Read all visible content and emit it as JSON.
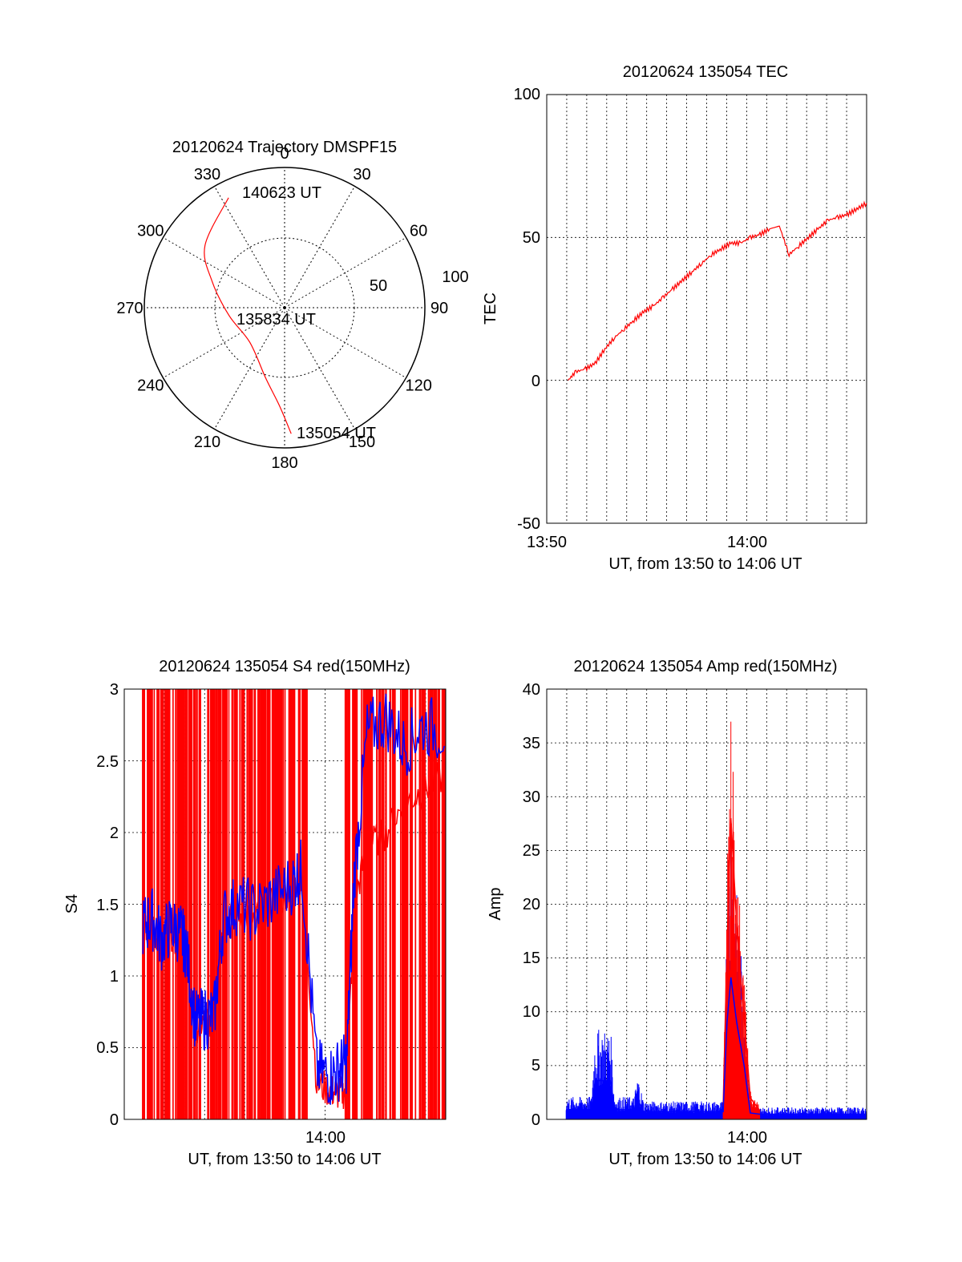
{
  "colors": {
    "red": "#ff0000",
    "blue": "#0000ff",
    "axis": "#000000",
    "grid": "#000000",
    "background": "#ffffff"
  },
  "polar": {
    "title": "20120624 Trajectory DMSPF15",
    "angle_labels": [
      "0",
      "30",
      "60",
      "90",
      "120",
      "150",
      "180",
      "210",
      "240",
      "270",
      "300",
      "330"
    ],
    "radius_labels": [
      "50",
      "100"
    ],
    "annotations": [
      "140623 UT",
      "135834 UT",
      "135054 UT"
    ]
  },
  "tec": {
    "title": "20120624 135054 TEC",
    "xlabel": "UT, from 13:50 to 14:06 UT",
    "ylabel": "TEC",
    "yticks": [
      "100",
      "50",
      "0",
      "-50"
    ],
    "xticks": [
      "13:50",
      "14:00"
    ]
  },
  "s4": {
    "title": "20120624 135054 S4 red(150MHz)",
    "xlabel": "UT, from 13:50 to 14:06 UT",
    "ylabel": "S4",
    "yticks": [
      "3",
      "2.5",
      "2",
      "1.5",
      "1",
      "0.5",
      "0"
    ],
    "xticks": [
      "14:00"
    ]
  },
  "amp": {
    "title": "20120624 135054 Amp red(150MHz)",
    "xlabel": "UT, from 13:50 to 14:06 UT",
    "ylabel": "Amp",
    "yticks": [
      "40",
      "35",
      "30",
      "25",
      "20",
      "15",
      "10",
      "5",
      "0"
    ],
    "xticks": [
      "14:00"
    ]
  },
  "chart_data": [
    {
      "type": "line",
      "chart": "polar-trajectory",
      "title": "20120624 Trajectory DMSPF15",
      "angle_unit": "degrees",
      "radial_range": [
        0,
        100
      ],
      "grid": true,
      "series": [
        {
          "color": "#ff0000",
          "points": [
            {
              "az": 177,
              "el_r": 90
            },
            {
              "az": 183,
              "el_r": 70
            },
            {
              "az": 195,
              "el_r": 52
            },
            {
              "az": 225,
              "el_r": 35
            },
            {
              "az": 262,
              "el_r": 40
            },
            {
              "az": 290,
              "el_r": 55
            },
            {
              "az": 308,
              "el_r": 72
            },
            {
              "az": 333,
              "el_r": 88
            }
          ]
        }
      ]
    },
    {
      "type": "line",
      "title": "20120624 135054 TEC",
      "xlabel": "UT, from 13:50 to 14:06 UT",
      "ylabel": "TEC",
      "xlim": [
        0,
        16.5
      ],
      "ylim": [
        -50,
        100
      ],
      "grid": true,
      "series": [
        {
          "color": "#ff0000",
          "x": [
            1.1,
            1.5,
            2,
            2.5,
            3,
            3.5,
            4,
            4.5,
            5,
            5.5,
            6,
            6.5,
            7,
            7.5,
            8,
            8.5,
            9,
            9.5,
            10,
            10.5,
            11,
            11.5,
            12,
            12.5,
            13,
            13.5,
            14,
            14.5,
            15,
            15.5,
            16,
            16.5
          ],
          "y": [
            0,
            3,
            4,
            6,
            11,
            15,
            18,
            21,
            24,
            26,
            29,
            32,
            35,
            38,
            41,
            44,
            46,
            48,
            48,
            50,
            51,
            53,
            54,
            44,
            47,
            50,
            53,
            56,
            57,
            58,
            60,
            62
          ]
        }
      ]
    },
    {
      "type": "line",
      "title": "20120624 135054 S4 red(150MHz)",
      "xlabel": "UT, from 13:50 to 14:06 UT",
      "ylabel": "S4",
      "xlim": [
        0,
        17.2
      ],
      "ylim": [
        0,
        3
      ],
      "grid": true,
      "series": [
        {
          "color": "#0000ff",
          "x": [
            1,
            1.5,
            2,
            2.5,
            3,
            3.3,
            3.8,
            4.3,
            4.8,
            5.3,
            6,
            7,
            8,
            9,
            9.5,
            10.3,
            11,
            11.5,
            11.9,
            12.3,
            13,
            14,
            15,
            16,
            17.2
          ],
          "y": [
            1.35,
            1.4,
            1.25,
            1.35,
            1.3,
            1.2,
            0.68,
            0.7,
            0.72,
            1.4,
            1.5,
            1.45,
            1.55,
            1.65,
            1.75,
            0.35,
            0.3,
            0.35,
            0.4,
            1.7,
            2.7,
            2.8,
            2.6,
            2.75,
            2.7
          ]
        },
        {
          "color": "#ff0000",
          "x": [
            1,
            1.5,
            2,
            2.5,
            3,
            3.3,
            3.8,
            4.3,
            4.8,
            5.3,
            6,
            7,
            8,
            9,
            9.5,
            10.3,
            11,
            11.5,
            11.9,
            12.3,
            13,
            14,
            15,
            16,
            17.2
          ],
          "y": [
            1.3,
            1.35,
            1.2,
            1.3,
            1.25,
            1.15,
            0.65,
            0.68,
            0.7,
            1.35,
            1.45,
            1.4,
            1.5,
            1.6,
            1.7,
            0.25,
            0.2,
            0.18,
            0.2,
            1.5,
            1.9,
            2.0,
            2.2,
            2.3,
            2.4
          ]
        }
      ]
    },
    {
      "type": "line",
      "title": "20120624 135054 Amp red(150MHz)",
      "xlabel": "UT, from 13:50 to 14:06 UT",
      "ylabel": "Amp",
      "xlim": [
        0,
        16.5
      ],
      "ylim": [
        0,
        40
      ],
      "grid": true,
      "series": [
        {
          "color": "#0000ff",
          "x": [
            1,
            2,
            2.3,
            2.5,
            3.3,
            3.5,
            4.5,
            4.7,
            5,
            6,
            7,
            8,
            9.1,
            9.3,
            9.5,
            9.8,
            10.2,
            10.5,
            11,
            12,
            13,
            14,
            15,
            16.5
          ],
          "y": [
            1.5,
            1.5,
            1.5,
            6,
            6,
            1.5,
            1.5,
            3,
            1.2,
            1.2,
            1.2,
            1.2,
            1.2,
            15,
            22,
            15,
            8,
            1,
            0.8,
            0.8,
            0.8,
            0.8,
            0.8,
            0.8
          ]
        },
        {
          "color": "#ff0000",
          "x": [
            9.1,
            9.3,
            9.5,
            9.8,
            10.2,
            10.5,
            11
          ],
          "y": [
            1.2,
            16,
            28,
            18,
            9,
            2,
            0.8
          ]
        }
      ]
    }
  ]
}
